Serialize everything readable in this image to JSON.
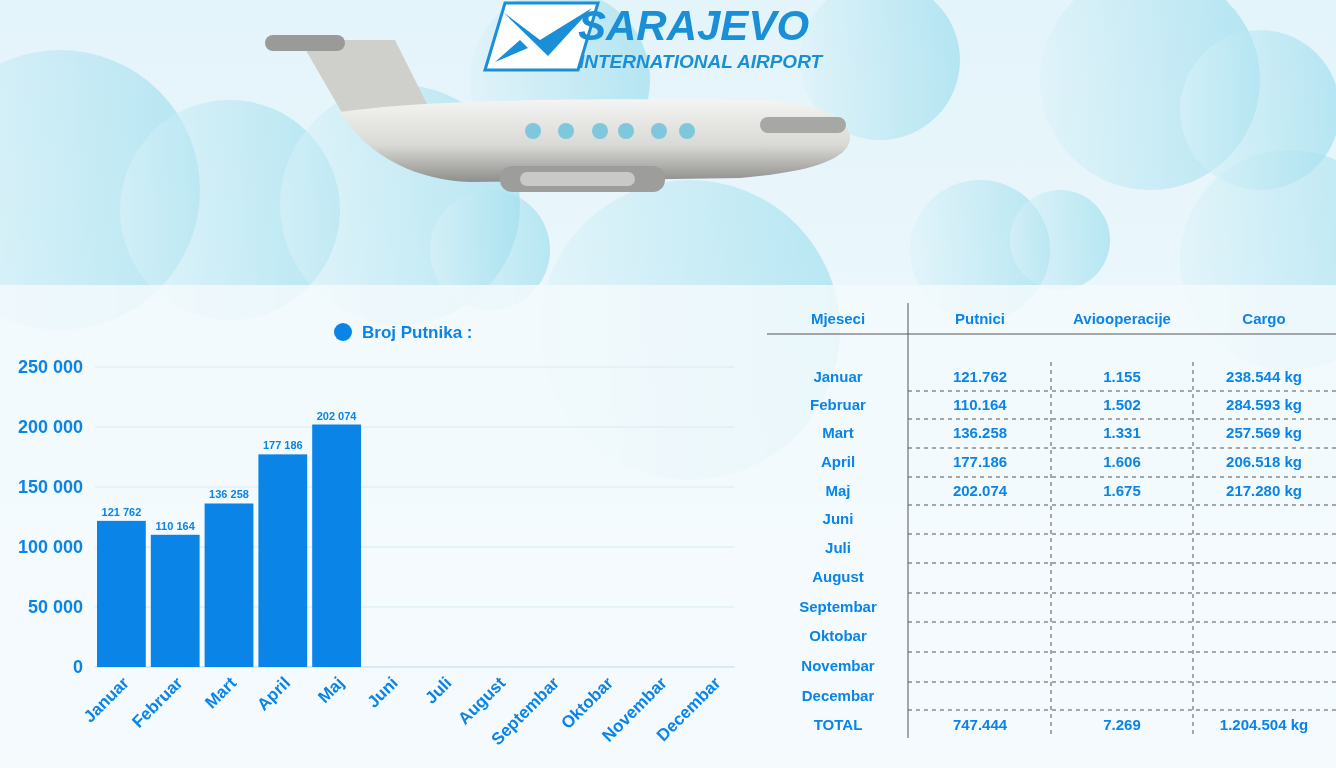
{
  "header": {
    "title": "SARAJEVO",
    "subtitle": "INTERNATIONAL AIRPORT"
  },
  "chart_data": {
    "type": "bar",
    "title": "Broj Putnika :",
    "categories": [
      "Januar",
      "Februar",
      "Mart",
      "April",
      "Maj",
      "Juni",
      "Juli",
      "August",
      "Septembar",
      "Oktobar",
      "Novembar",
      "Decembar"
    ],
    "values": [
      121762,
      110164,
      136258,
      177186,
      202074,
      null,
      null,
      null,
      null,
      null,
      null,
      null
    ],
    "value_labels": [
      "121 762",
      "110 164",
      "136 258",
      "177 186",
      "202 074",
      null,
      null,
      null,
      null,
      null,
      null,
      null
    ],
    "color": "#0a84e6",
    "ylim": [
      0,
      250000
    ],
    "yticks": [
      0,
      {
        "value": 50000,
        "label": "50 000"
      },
      {
        "value": 100000,
        "label": "100 000"
      },
      {
        "value": 150000,
        "label": "150 000"
      },
      {
        "value": 200000,
        "label": "200 000"
      },
      {
        "value": 250000,
        "label": "250 000"
      }
    ],
    "grid": true,
    "data_labels": true
  },
  "table": {
    "header": [
      "Mjeseci",
      "Putnici",
      "Aviooperacije",
      "Cargo"
    ],
    "rows": [
      [
        "Januar",
        "121.762",
        "1.155",
        "238.544 kg"
      ],
      [
        "Februar",
        "110.164",
        "1.502",
        "284.593 kg"
      ],
      [
        "Mart",
        "136.258",
        "1.331",
        "257.569 kg"
      ],
      [
        "April",
        "177.186",
        "1.606",
        "206.518 kg"
      ],
      [
        "Maj",
        "202.074",
        "1.675",
        "217.280 kg"
      ],
      [
        "Juni",
        null,
        null,
        null
      ],
      [
        "Juli",
        null,
        null,
        null
      ],
      [
        "August",
        null,
        null,
        null
      ],
      [
        "Septembar",
        null,
        null,
        null
      ],
      [
        "Oktobar",
        null,
        null,
        null
      ],
      [
        "Novembar",
        null,
        null,
        null
      ],
      [
        "Decembar",
        null,
        null,
        null
      ]
    ],
    "total": [
      "TOTAL",
      "747.444",
      "7.269",
      "1.204.504 kg"
    ]
  }
}
